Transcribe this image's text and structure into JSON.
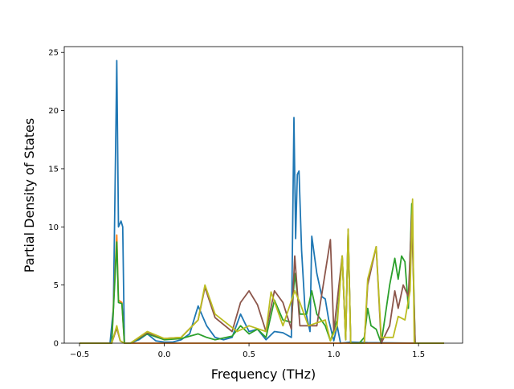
{
  "chart_data": {
    "type": "line",
    "title": "",
    "xlabel": "Frequency (THz)",
    "ylabel": "Partial Density of States",
    "xlim": [
      -0.59,
      1.76
    ],
    "ylim": [
      0,
      25.5
    ],
    "xticks": [
      -0.5,
      0.0,
      0.5,
      1.0,
      1.5
    ],
    "xtick_labels": [
      "−0.5",
      "0.0",
      "0.5",
      "1.0",
      "1.5"
    ],
    "yticks": [
      0,
      5,
      10,
      15,
      20,
      25
    ],
    "ytick_labels": [
      "0",
      "5",
      "10",
      "15",
      "20",
      "25"
    ],
    "grid": false,
    "legend": "none",
    "series": [
      {
        "color": "#1f77b4",
        "points": [
          [
            -0.5,
            0
          ],
          [
            -0.32,
            0
          ],
          [
            -0.3,
            3
          ],
          [
            -0.285,
            19
          ],
          [
            -0.28,
            24.3
          ],
          [
            -0.27,
            10
          ],
          [
            -0.255,
            10.5
          ],
          [
            -0.245,
            10
          ],
          [
            -0.235,
            0
          ],
          [
            -0.2,
            0
          ],
          [
            -0.15,
            0.3
          ],
          [
            -0.1,
            0.8
          ],
          [
            -0.05,
            0.2
          ],
          [
            0,
            0.1
          ],
          [
            0.05,
            0.1
          ],
          [
            0.1,
            0.3
          ],
          [
            0.15,
            0.8
          ],
          [
            0.2,
            3.2
          ],
          [
            0.25,
            1.5
          ],
          [
            0.3,
            0.5
          ],
          [
            0.35,
            0.3
          ],
          [
            0.4,
            0.5
          ],
          [
            0.45,
            2.5
          ],
          [
            0.5,
            1
          ],
          [
            0.55,
            1.2
          ],
          [
            0.6,
            0.3
          ],
          [
            0.65,
            1
          ],
          [
            0.7,
            0.9
          ],
          [
            0.75,
            0.5
          ],
          [
            0.765,
            19.4
          ],
          [
            0.775,
            9
          ],
          [
            0.785,
            14.5
          ],
          [
            0.795,
            14.8
          ],
          [
            0.81,
            8
          ],
          [
            0.83,
            3
          ],
          [
            0.86,
            1
          ],
          [
            0.87,
            9.2
          ],
          [
            0.9,
            6
          ],
          [
            0.93,
            4
          ],
          [
            0.95,
            3.8
          ],
          [
            0.97,
            2
          ],
          [
            1.0,
            0.2
          ],
          [
            1.02,
            1.5
          ],
          [
            1.04,
            0
          ],
          [
            1.1,
            0.1
          ],
          [
            1.2,
            0.05
          ],
          [
            1.5,
            0
          ],
          [
            1.65,
            0
          ]
        ]
      },
      {
        "color": "#ff7f0e",
        "points": [
          [
            -0.5,
            0
          ],
          [
            -0.31,
            0
          ],
          [
            -0.28,
            9.3
          ],
          [
            -0.27,
            3.7
          ],
          [
            -0.25,
            3.5
          ],
          [
            -0.235,
            0
          ],
          [
            -0.2,
            0
          ],
          [
            1.65,
            0
          ]
        ]
      },
      {
        "color": "#2ca02c",
        "points": [
          [
            -0.5,
            0
          ],
          [
            -0.31,
            0
          ],
          [
            -0.28,
            8.7
          ],
          [
            -0.27,
            3.5
          ],
          [
            -0.25,
            3.4
          ],
          [
            -0.235,
            0
          ],
          [
            -0.2,
            0
          ],
          [
            -0.1,
            0.8
          ],
          [
            0,
            0.3
          ],
          [
            0.1,
            0.4
          ],
          [
            0.2,
            0.8
          ],
          [
            0.25,
            0.5
          ],
          [
            0.3,
            0.3
          ],
          [
            0.4,
            0.6
          ],
          [
            0.45,
            1.5
          ],
          [
            0.5,
            0.8
          ],
          [
            0.55,
            1.2
          ],
          [
            0.6,
            0.5
          ],
          [
            0.65,
            3.7
          ],
          [
            0.7,
            2
          ],
          [
            0.75,
            1.8
          ],
          [
            0.77,
            6
          ],
          [
            0.8,
            2.5
          ],
          [
            0.84,
            2.5
          ],
          [
            0.87,
            4.5
          ],
          [
            0.9,
            2.5
          ],
          [
            0.95,
            1.5
          ],
          [
            0.98,
            0.2
          ],
          [
            1.02,
            2
          ],
          [
            1.05,
            7.5
          ],
          [
            1.07,
            0.3
          ],
          [
            1.085,
            9.7
          ],
          [
            1.1,
            0
          ],
          [
            1.15,
            0
          ],
          [
            1.18,
            0.5
          ],
          [
            1.2,
            3
          ],
          [
            1.22,
            1.5
          ],
          [
            1.25,
            1.2
          ],
          [
            1.28,
            0
          ],
          [
            1.3,
            2
          ],
          [
            1.33,
            5
          ],
          [
            1.36,
            7.3
          ],
          [
            1.38,
            5.5
          ],
          [
            1.4,
            7.5
          ],
          [
            1.42,
            7.0
          ],
          [
            1.44,
            3
          ],
          [
            1.46,
            12
          ],
          [
            1.48,
            0
          ],
          [
            1.65,
            0
          ]
        ]
      },
      {
        "color": "#8c564b",
        "points": [
          [
            -0.5,
            0
          ],
          [
            -0.31,
            0
          ],
          [
            -0.28,
            1.3
          ],
          [
            -0.26,
            0.2
          ],
          [
            -0.235,
            0
          ],
          [
            -0.2,
            0
          ],
          [
            -0.1,
            0.9
          ],
          [
            0,
            0.4
          ],
          [
            0.1,
            0.5
          ],
          [
            0.2,
            2
          ],
          [
            0.24,
            4.8
          ],
          [
            0.3,
            2.2
          ],
          [
            0.4,
            1
          ],
          [
            0.45,
            3.5
          ],
          [
            0.5,
            4.5
          ],
          [
            0.55,
            3.3
          ],
          [
            0.6,
            1
          ],
          [
            0.65,
            4.5
          ],
          [
            0.7,
            3.5
          ],
          [
            0.75,
            1.2
          ],
          [
            0.77,
            7.5
          ],
          [
            0.8,
            1.5
          ],
          [
            0.9,
            1.5
          ],
          [
            0.98,
            8.9
          ],
          [
            1.0,
            1
          ],
          [
            1.05,
            7.5
          ],
          [
            1.07,
            0.3
          ],
          [
            1.085,
            9.8
          ],
          [
            1.1,
            0
          ],
          [
            1.18,
            0
          ],
          [
            1.2,
            5
          ],
          [
            1.25,
            8.3
          ],
          [
            1.28,
            0
          ],
          [
            1.33,
            1.5
          ],
          [
            1.36,
            4.5
          ],
          [
            1.38,
            3
          ],
          [
            1.41,
            5
          ],
          [
            1.44,
            4
          ],
          [
            1.46,
            11
          ],
          [
            1.48,
            0
          ],
          [
            1.65,
            0
          ]
        ]
      },
      {
        "color": "#bcbd22",
        "points": [
          [
            -0.5,
            0
          ],
          [
            -0.31,
            0
          ],
          [
            -0.28,
            1.5
          ],
          [
            -0.26,
            0.2
          ],
          [
            -0.235,
            0
          ],
          [
            -0.2,
            0
          ],
          [
            -0.1,
            1
          ],
          [
            0,
            0.4
          ],
          [
            0.1,
            0.5
          ],
          [
            0.2,
            2
          ],
          [
            0.24,
            5
          ],
          [
            0.3,
            2.5
          ],
          [
            0.43,
            1
          ],
          [
            0.5,
            1.5
          ],
          [
            0.6,
            1
          ],
          [
            0.63,
            4.4
          ],
          [
            0.7,
            1.5
          ],
          [
            0.77,
            4.5
          ],
          [
            0.8,
            3.5
          ],
          [
            0.85,
            1.5
          ],
          [
            0.95,
            2
          ],
          [
            0.98,
            0.2
          ],
          [
            1.02,
            1.5
          ],
          [
            1.05,
            7.5
          ],
          [
            1.07,
            0.3
          ],
          [
            1.085,
            9.8
          ],
          [
            1.1,
            0
          ],
          [
            1.18,
            0
          ],
          [
            1.2,
            5.5
          ],
          [
            1.25,
            8.3
          ],
          [
            1.28,
            0.5
          ],
          [
            1.35,
            0.5
          ],
          [
            1.38,
            2.3
          ],
          [
            1.42,
            2
          ],
          [
            1.45,
            4.5
          ],
          [
            1.465,
            12.4
          ],
          [
            1.475,
            0
          ],
          [
            1.65,
            0
          ]
        ]
      }
    ]
  }
}
